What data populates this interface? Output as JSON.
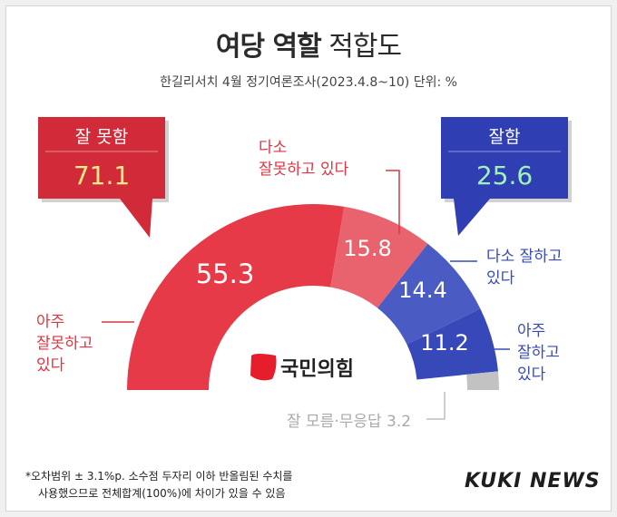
{
  "header": {
    "title_bold": "여당 역할",
    "title_rest": "적합도",
    "subtitle": "한길리서치 4월 정기여론조사(2023.4.8~10) 단위: %"
  },
  "summary": {
    "negative": {
      "label": "잘 못함",
      "value": "71.1"
    },
    "positive": {
      "label": "잘함",
      "value": "25.6"
    }
  },
  "party_logo_text": "국민의힘",
  "footnote": {
    "line1": "*오차범위 ± 3.1%p. 소수점 두자리 이하 반올림된 수치를",
    "line2": "사용했으므로 전체합계(100%)에 차이가 있을 수 있음"
  },
  "brand": "KUKI NEWS",
  "colors": {
    "red_dark": "#e63a48",
    "red_light": "#e8636e",
    "blue_light": "#4a5cc4",
    "blue_dark": "#3748b8",
    "gray": "#c2c2c2",
    "box_red": "#d12a38",
    "box_blue": "#2f3fb3"
  },
  "chart_data": {
    "type": "pie",
    "subtype": "semicircle-donut",
    "unit": "%",
    "slices": [
      {
        "name": "아주 잘못하고 있다",
        "value": 55.3,
        "value_label": "55.3",
        "label_lines": [
          "아주",
          "잘못하고",
          "있다"
        ]
      },
      {
        "name": "다소 잘못하고 있다",
        "value": 15.8,
        "value_label": "15.8",
        "label_lines": [
          "다소",
          "잘못하고 있다"
        ]
      },
      {
        "name": "다소 잘하고 있다",
        "value": 14.4,
        "value_label": "14.4",
        "label_lines": [
          "다소 잘하고",
          "있다"
        ]
      },
      {
        "name": "아주 잘하고 있다",
        "value": 11.2,
        "value_label": "11.2",
        "label_lines": [
          "아주",
          "잘하고",
          "있다"
        ]
      },
      {
        "name": "잘 모름·무응답",
        "value": 3.2,
        "value_label": "",
        "label_lines": [
          "잘 모름·무응답 3.2"
        ]
      }
    ]
  }
}
